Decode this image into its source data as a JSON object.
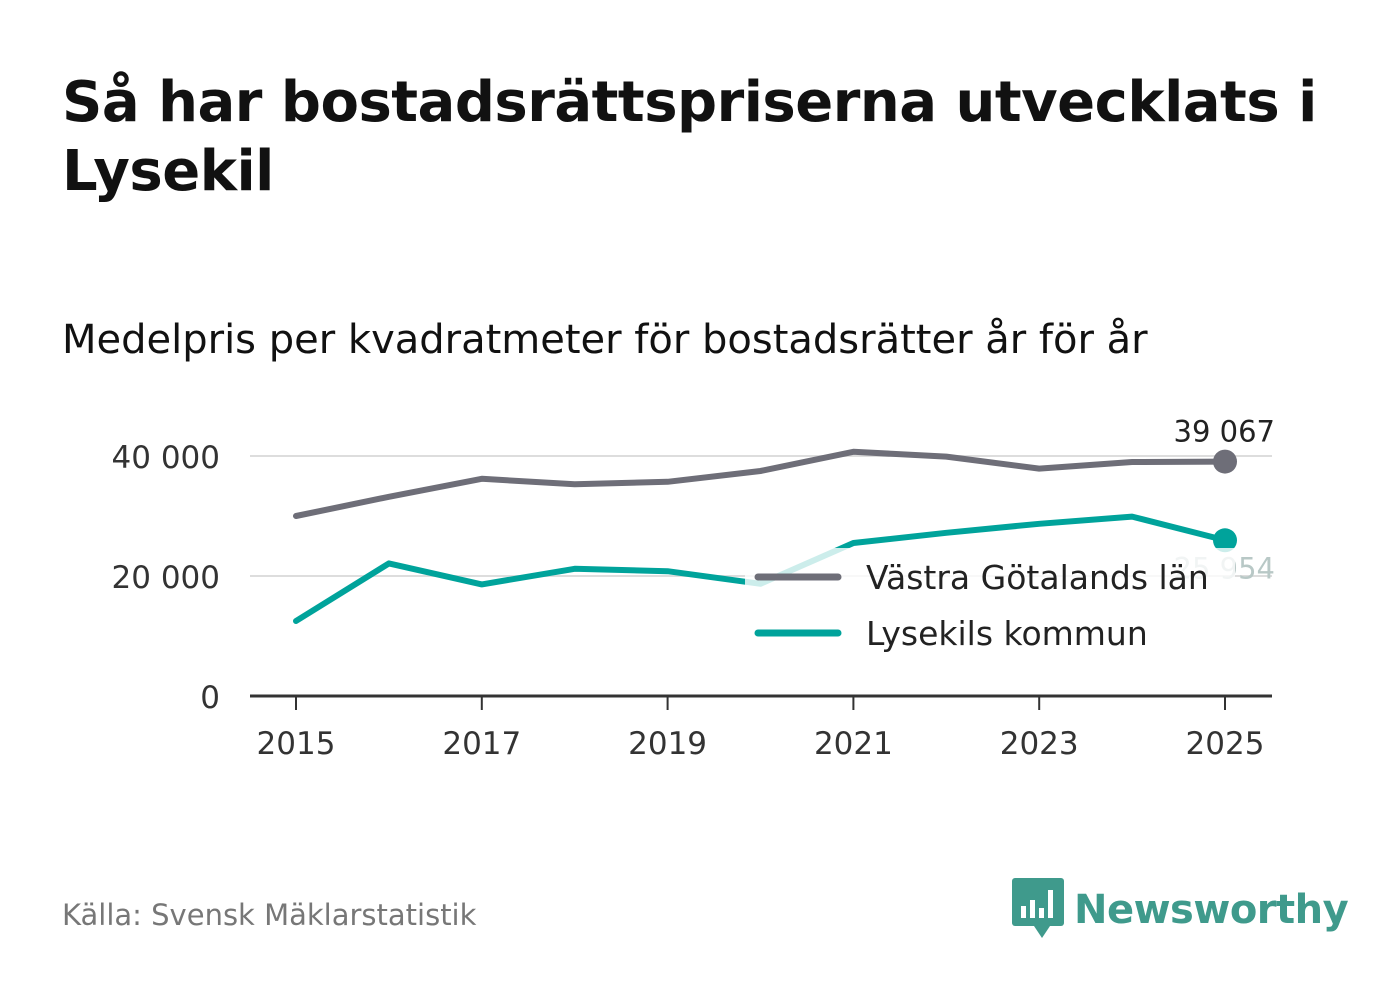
{
  "title": "Så har bostadsrättspriserna utvecklats i Lysekil",
  "subtitle": "Medelpris per kvadratmeter för bostadsrätter år för år",
  "source": "Källa: Svensk Mäklarstatistik",
  "brand": {
    "name": "Newsworthy",
    "icon": "bar-chart-speech-bubble-icon",
    "color": "#3f9a8c"
  },
  "chart_data": {
    "type": "line",
    "title": "Medelpris per kvadratmeter för bostadsrätter år för år",
    "xlabel": "",
    "ylabel": "",
    "x": [
      2015,
      2016,
      2017,
      2018,
      2019,
      2020,
      2021,
      2022,
      2023,
      2024,
      2025
    ],
    "xticks": [
      "2015",
      "2017",
      "2019",
      "2021",
      "2023",
      "2025"
    ],
    "xticks_values": [
      2015,
      2017,
      2019,
      2021,
      2023,
      2025
    ],
    "yticks": [
      "0",
      "20 000",
      "40 000"
    ],
    "yticks_values": [
      0,
      20000,
      40000
    ],
    "xlim": [
      2014.5,
      2025.5
    ],
    "ylim": [
      0,
      40000
    ],
    "grid": true,
    "legend_position": "center-right",
    "series": [
      {
        "name": "Västra Götalands län",
        "color": "#6e6e78",
        "values": [
          30000,
          33200,
          36200,
          35300,
          35700,
          37500,
          40700,
          39900,
          37900,
          39000,
          39067
        ],
        "end_label": "39 067"
      },
      {
        "name": "Lysekils kommun",
        "color": "#00a39b",
        "values": [
          12500,
          22100,
          18600,
          21200,
          20800,
          18700,
          25500,
          27200,
          28700,
          29900,
          25954
        ],
        "end_label": "25 954"
      }
    ]
  }
}
